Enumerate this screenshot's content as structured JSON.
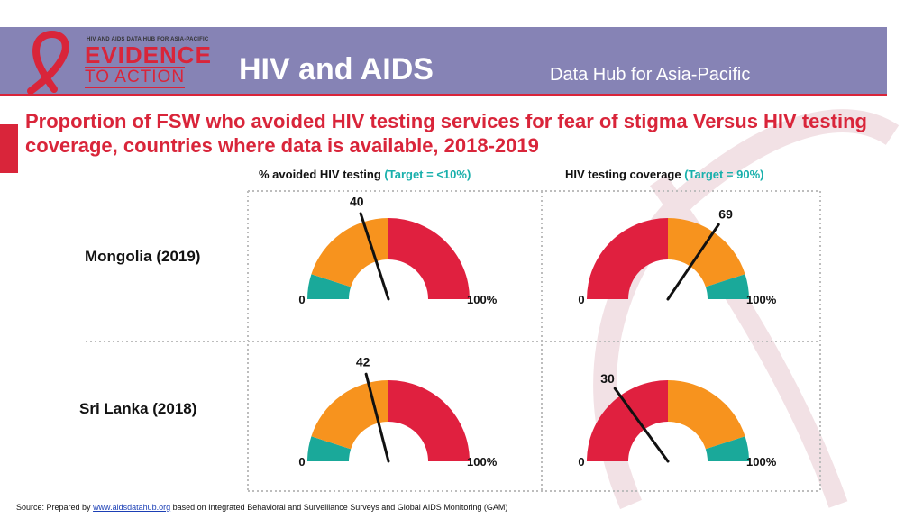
{
  "header": {
    "logo_tagline": "HIV AND AIDS DATA HUB FOR ASIA-PACIFIC",
    "logo_main": "EVIDENCE",
    "logo_sub": "TO ACTION",
    "title": "HIV and AIDS",
    "subtitle": "Data Hub for Asia-Pacific"
  },
  "page_title": "Proportion of FSW who avoided HIV testing services for fear of stigma Versus HIV testing coverage, countries where data is available, 2018-2019",
  "columns": [
    {
      "label": "% avoided HIV testing ",
      "target": "(Target = <10%)"
    },
    {
      "label": "HIV testing coverage ",
      "target": "(Target = 90%)"
    }
  ],
  "rows": [
    {
      "label": "Mongolia (2019)"
    },
    {
      "label": "Sri Lanka (2018)"
    }
  ],
  "source": {
    "prefix": "Source: Prepared by ",
    "link": "www.aidsdatahub.org",
    "suffix": " based on Integrated Behavioral and Surveillance Surveys and Global AIDS Monitoring (GAM)"
  },
  "colors": {
    "red": "#e0203f",
    "orange": "#f7931e",
    "teal": "#1aa99a",
    "header": "#8683b5"
  },
  "chart_data": {
    "type": "gauge",
    "title": "Proportion of FSW who avoided HIV testing services for fear of stigma Versus HIV testing coverage, countries where data is available, 2018-2019",
    "range": [
      0,
      100
    ],
    "min_label": "0",
    "max_label": "100%",
    "gauges": [
      {
        "country": "Mongolia (2019)",
        "indicator": "% avoided HIV testing",
        "value": 40,
        "bands": [
          {
            "from": 0,
            "to": 10,
            "color": "#1aa99a"
          },
          {
            "from": 10,
            "to": 50,
            "color": "#f7931e"
          },
          {
            "from": 50,
            "to": 100,
            "color": "#e0203f"
          }
        ]
      },
      {
        "country": "Mongolia (2019)",
        "indicator": "HIV testing coverage",
        "value": 69,
        "bands": [
          {
            "from": 0,
            "to": 50,
            "color": "#e0203f"
          },
          {
            "from": 50,
            "to": 90,
            "color": "#f7931e"
          },
          {
            "from": 90,
            "to": 100,
            "color": "#1aa99a"
          }
        ]
      },
      {
        "country": "Sri Lanka (2018)",
        "indicator": "% avoided HIV testing",
        "value": 42,
        "bands": [
          {
            "from": 0,
            "to": 10,
            "color": "#1aa99a"
          },
          {
            "from": 10,
            "to": 50,
            "color": "#f7931e"
          },
          {
            "from": 50,
            "to": 100,
            "color": "#e0203f"
          }
        ]
      },
      {
        "country": "Sri Lanka (2018)",
        "indicator": "HIV testing coverage",
        "value": 30,
        "bands": [
          {
            "from": 0,
            "to": 50,
            "color": "#e0203f"
          },
          {
            "from": 50,
            "to": 90,
            "color": "#f7931e"
          },
          {
            "from": 90,
            "to": 100,
            "color": "#1aa99a"
          }
        ]
      }
    ]
  }
}
